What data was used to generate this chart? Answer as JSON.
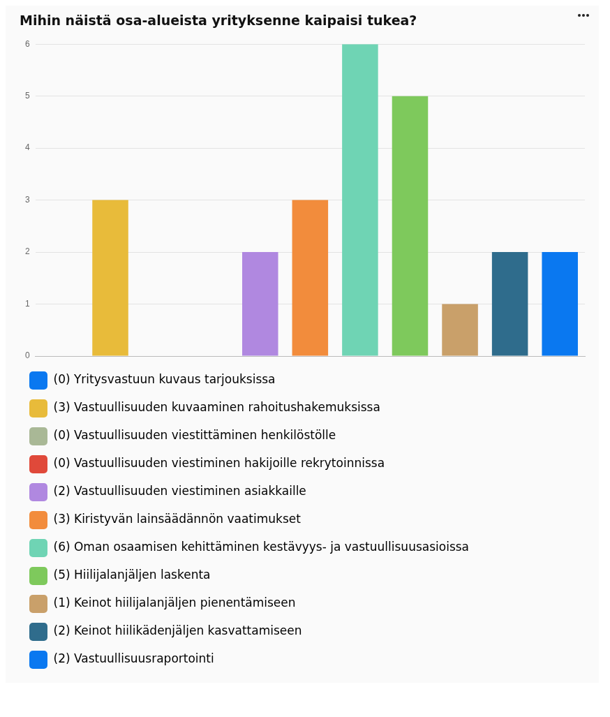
{
  "chart_data": {
    "type": "bar",
    "title": "Mihin näistä osa-alueista yrityksenne kaipaisi tukea?",
    "categories": [
      null,
      null,
      null,
      null,
      null,
      null,
      null,
      null,
      null,
      null,
      null
    ],
    "series": [
      {
        "name": "(0) Yritysvastuun kuvaus tarjouksissa",
        "color": "#0a78f0",
        "values": [
          0,
          null,
          null,
          null,
          null,
          null,
          null,
          null,
          null,
          null,
          null
        ]
      },
      {
        "name": "(3) Vastuullisuuden kuvaaminen rahoitushakemuksissa",
        "color": "#e8bb3a",
        "values": [
          null,
          3,
          null,
          null,
          null,
          null,
          null,
          null,
          null,
          null,
          null
        ]
      },
      {
        "name": "(0) Vastuullisuuden viestittäminen henkilöstölle",
        "color": "#a9b896",
        "values": [
          null,
          null,
          0,
          null,
          null,
          null,
          null,
          null,
          null,
          null,
          null
        ]
      },
      {
        "name": "(0) Vastuullisuuden viestiminen hakijoille rekrytoinnissa",
        "color": "#e0493a",
        "values": [
          null,
          null,
          null,
          0,
          null,
          null,
          null,
          null,
          null,
          null,
          null
        ]
      },
      {
        "name": "(2) Vastuullisuuden viestiminen asiakkaille",
        "color": "#b088e0",
        "values": [
          null,
          null,
          null,
          null,
          2,
          null,
          null,
          null,
          null,
          null,
          null
        ]
      },
      {
        "name": "(3) Kiristyvän lainsäädännön vaatimukset",
        "color": "#f28c3c",
        "values": [
          null,
          null,
          null,
          null,
          null,
          3,
          null,
          null,
          null,
          null,
          null
        ]
      },
      {
        "name": "(6) Oman osaamisen kehittäminen kestävyys- ja vastuullisuusasioissa",
        "color": "#6fd4b4",
        "values": [
          null,
          null,
          null,
          null,
          null,
          null,
          6,
          null,
          null,
          null,
          null
        ]
      },
      {
        "name": "(5) Hiilijalanjäljen laskenta",
        "color": "#7ec95c",
        "values": [
          null,
          null,
          null,
          null,
          null,
          null,
          null,
          5,
          null,
          null,
          null
        ]
      },
      {
        "name": "(1) Keinot hiilijalanjäljen pienentämiseen",
        "color": "#c9a06a",
        "values": [
          null,
          null,
          null,
          null,
          null,
          null,
          null,
          null,
          1,
          null,
          null
        ]
      },
      {
        "name": "(2) Keinot hiilikädenjäljen kasvattamiseen",
        "color": "#2f6c8c",
        "values": [
          null,
          null,
          null,
          null,
          null,
          null,
          null,
          null,
          null,
          2,
          null
        ]
      },
      {
        "name": "(2) Vastuullisuusraportointi",
        "color": "#0a78f0",
        "values": [
          null,
          null,
          null,
          null,
          null,
          null,
          null,
          null,
          null,
          null,
          2
        ]
      }
    ],
    "ylim": [
      0,
      6
    ],
    "yticks": [
      0,
      1,
      2,
      3,
      4,
      5,
      6
    ],
    "grid": "y",
    "legend": "bottom",
    "tick_labels": "y"
  }
}
